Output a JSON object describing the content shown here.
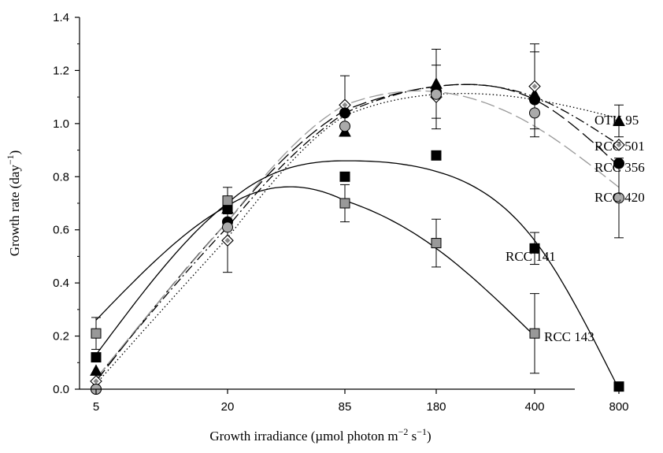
{
  "chart_data": {
    "type": "scatter",
    "title": "",
    "xlabel": "Growth irradiance (µmol photon m⁻² s⁻¹)",
    "xlabel_parts": [
      "Growth irradiance (µmol photon m",
      "−2",
      " s",
      "−1",
      ")"
    ],
    "ylabel": "Growth rate (day⁻¹)",
    "ylabel_parts": [
      "Growth rate (day",
      "−1",
      ")"
    ],
    "x_scale": "log",
    "x": [
      5,
      20,
      85,
      180,
      400,
      800
    ],
    "x_tick_labels": [
      "5",
      "20",
      "85",
      "180",
      "400",
      "800"
    ],
    "ylim": [
      0,
      1.4
    ],
    "y_ticks": [
      0.0,
      0.2,
      0.4,
      0.6,
      0.8,
      1.0,
      1.2,
      1.4
    ],
    "y_tick_labels": [
      "0.0",
      "0.2",
      "0.4",
      "0.6",
      "0.8",
      "1.0",
      "1.2",
      "1.4"
    ],
    "grid": false,
    "legend": "direct labels at right end of series",
    "series": [
      {
        "name": "OTH 95",
        "marker": "triangle",
        "marker_color": "#000000",
        "line_style": "dotted",
        "line_color": "#000000",
        "values": [
          0.07,
          0.68,
          0.97,
          1.15,
          1.11,
          1.01
        ],
        "errors": [
          0.0,
          0.0,
          0.0,
          0.13,
          0.16,
          0.06
        ],
        "fit_values": [
          0.02,
          0.57,
          1.03,
          1.11,
          1.09,
          1.02
        ]
      },
      {
        "name": "RCC 501",
        "marker": "diamond-dotted",
        "marker_color": "#ffffff",
        "line_style": "dash-dot",
        "line_color": "#000000",
        "values": [
          0.03,
          0.56,
          1.07,
          1.1,
          1.14,
          0.92
        ],
        "errors": [
          0.0,
          0.12,
          0.11,
          0.12,
          0.16,
          0.0
        ],
        "fit_values": [
          0.04,
          0.61,
          1.04,
          1.14,
          1.1,
          0.92
        ]
      },
      {
        "name": "RCC 356",
        "marker": "circle",
        "marker_color": "#000000",
        "line_style": "long-dash",
        "line_color": "#000000",
        "values": [
          0.0,
          0.63,
          1.04,
          1.12,
          1.09,
          0.85
        ],
        "errors": [
          0.0,
          0.0,
          0.0,
          0.0,
          0.0,
          0.0
        ],
        "fit_values": [
          0.03,
          0.63,
          1.05,
          1.14,
          1.09,
          0.84
        ]
      },
      {
        "name": "RCC 420",
        "marker": "circle",
        "marker_color": "#aaaaaa",
        "line_style": "long-dash",
        "line_color": "#999999",
        "values": [
          0.0,
          0.61,
          0.99,
          1.11,
          1.04,
          0.72
        ],
        "errors": [
          0.0,
          0.0,
          0.0,
          0.0,
          0.0,
          0.15
        ],
        "fit_values": [
          0.04,
          0.63,
          1.07,
          1.12,
          0.99,
          0.76
        ]
      },
      {
        "name": "RCC 141",
        "marker": "square",
        "marker_color": "#000000",
        "line_style": "solid",
        "line_color": "#000000",
        "values": [
          0.12,
          0.68,
          0.8,
          0.88,
          0.53,
          0.01
        ],
        "errors": [
          0.0,
          0.0,
          0.0,
          0.0,
          0.06,
          0.0
        ],
        "fit_values": [
          0.13,
          0.7,
          0.86,
          0.82,
          0.56,
          0.0
        ]
      },
      {
        "name": "RCC 143",
        "marker": "square",
        "marker_color": "#999999",
        "line_style": "solid",
        "line_color": "#000000",
        "values": [
          0.21,
          0.71,
          0.7,
          0.55,
          0.21,
          null
        ],
        "errors": [
          0.06,
          0.05,
          0.07,
          0.09,
          0.15,
          0.0
        ],
        "fit_values": [
          0.26,
          0.69,
          0.71,
          0.53,
          0.2,
          null
        ]
      }
    ]
  }
}
